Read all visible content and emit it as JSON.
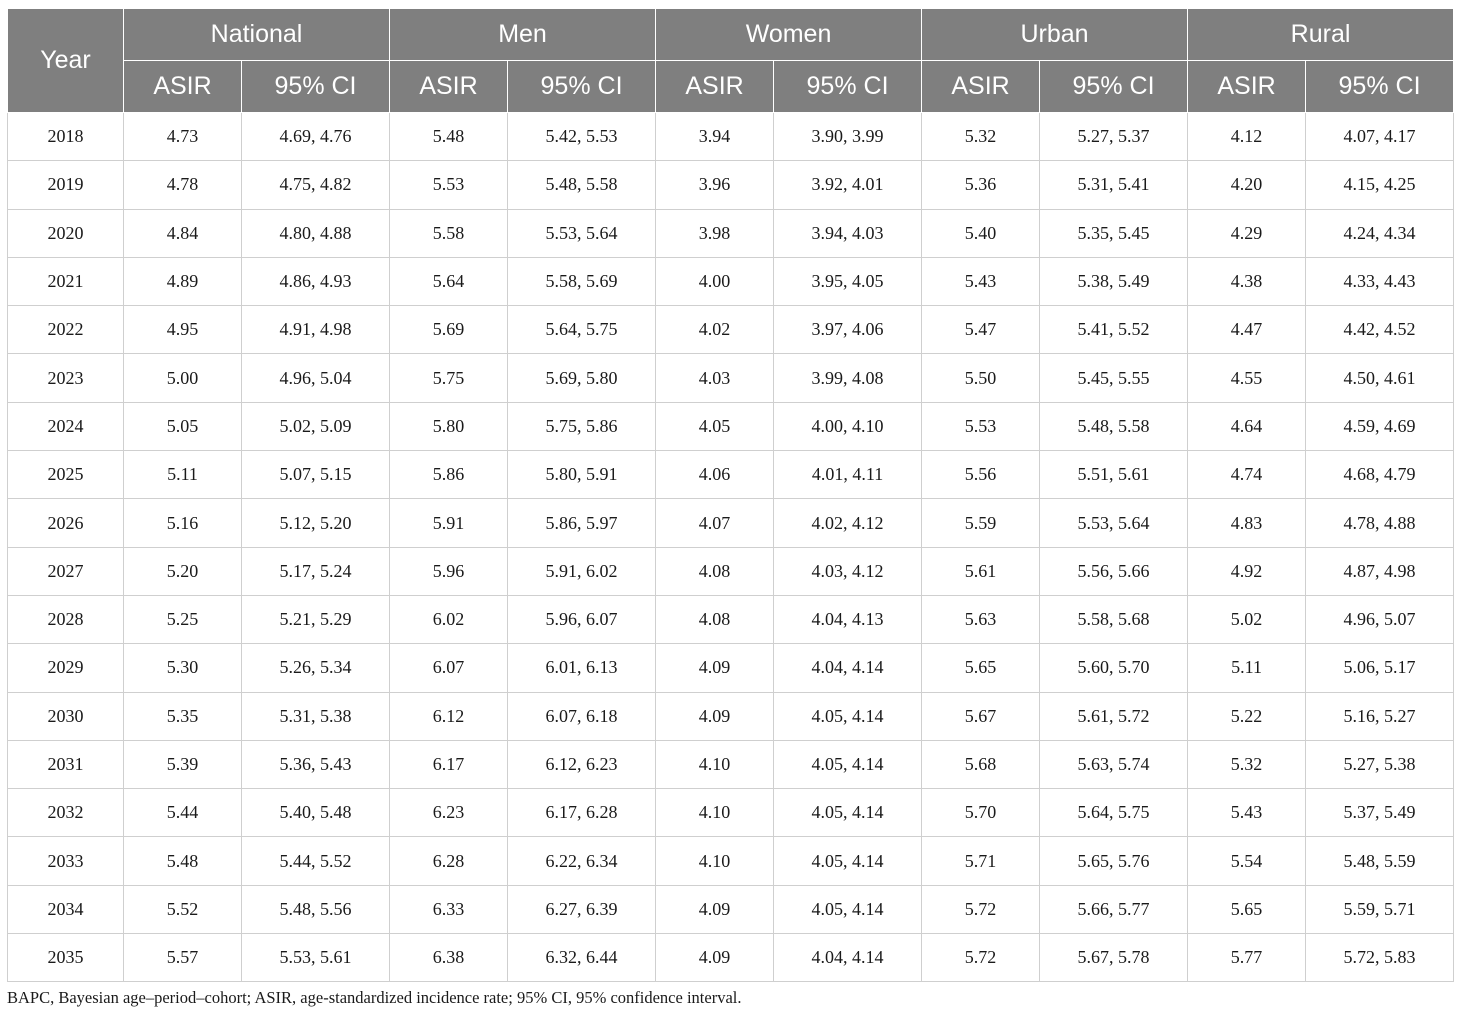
{
  "table": {
    "year_header": "Year",
    "groups": [
      "National",
      "Men",
      "Women",
      "Urban",
      "Rural"
    ],
    "sub_headers": [
      "ASIR",
      "95% CI"
    ],
    "rows": [
      {
        "year": "2018",
        "cells": [
          "4.73",
          "4.69, 4.76",
          "5.48",
          "5.42, 5.53",
          "3.94",
          "3.90, 3.99",
          "5.32",
          "5.27, 5.37",
          "4.12",
          "4.07, 4.17"
        ]
      },
      {
        "year": "2019",
        "cells": [
          "4.78",
          "4.75, 4.82",
          "5.53",
          "5.48, 5.58",
          "3.96",
          "3.92, 4.01",
          "5.36",
          "5.31, 5.41",
          "4.20",
          "4.15, 4.25"
        ]
      },
      {
        "year": "2020",
        "cells": [
          "4.84",
          "4.80, 4.88",
          "5.58",
          "5.53, 5.64",
          "3.98",
          "3.94, 4.03",
          "5.40",
          "5.35, 5.45",
          "4.29",
          "4.24, 4.34"
        ]
      },
      {
        "year": "2021",
        "cells": [
          "4.89",
          "4.86, 4.93",
          "5.64",
          "5.58, 5.69",
          "4.00",
          "3.95, 4.05",
          "5.43",
          "5.38, 5.49",
          "4.38",
          "4.33, 4.43"
        ]
      },
      {
        "year": "2022",
        "cells": [
          "4.95",
          "4.91, 4.98",
          "5.69",
          "5.64, 5.75",
          "4.02",
          "3.97, 4.06",
          "5.47",
          "5.41, 5.52",
          "4.47",
          "4.42, 4.52"
        ]
      },
      {
        "year": "2023",
        "cells": [
          "5.00",
          "4.96, 5.04",
          "5.75",
          "5.69, 5.80",
          "4.03",
          "3.99, 4.08",
          "5.50",
          "5.45, 5.55",
          "4.55",
          "4.50, 4.61"
        ]
      },
      {
        "year": "2024",
        "cells": [
          "5.05",
          "5.02, 5.09",
          "5.80",
          "5.75, 5.86",
          "4.05",
          "4.00, 4.10",
          "5.53",
          "5.48, 5.58",
          "4.64",
          "4.59, 4.69"
        ]
      },
      {
        "year": "2025",
        "cells": [
          "5.11",
          "5.07, 5.15",
          "5.86",
          "5.80, 5.91",
          "4.06",
          "4.01, 4.11",
          "5.56",
          "5.51, 5.61",
          "4.74",
          "4.68, 4.79"
        ]
      },
      {
        "year": "2026",
        "cells": [
          "5.16",
          "5.12, 5.20",
          "5.91",
          "5.86, 5.97",
          "4.07",
          "4.02, 4.12",
          "5.59",
          "5.53, 5.64",
          "4.83",
          "4.78, 4.88"
        ]
      },
      {
        "year": "2027",
        "cells": [
          "5.20",
          "5.17, 5.24",
          "5.96",
          "5.91, 6.02",
          "4.08",
          "4.03, 4.12",
          "5.61",
          "5.56, 5.66",
          "4.92",
          "4.87, 4.98"
        ]
      },
      {
        "year": "2028",
        "cells": [
          "5.25",
          "5.21, 5.29",
          "6.02",
          "5.96, 6.07",
          "4.08",
          "4.04, 4.13",
          "5.63",
          "5.58, 5.68",
          "5.02",
          "4.96, 5.07"
        ]
      },
      {
        "year": "2029",
        "cells": [
          "5.30",
          "5.26, 5.34",
          "6.07",
          "6.01, 6.13",
          "4.09",
          "4.04, 4.14",
          "5.65",
          "5.60, 5.70",
          "5.11",
          "5.06, 5.17"
        ]
      },
      {
        "year": "2030",
        "cells": [
          "5.35",
          "5.31, 5.38",
          "6.12",
          "6.07, 6.18",
          "4.09",
          "4.05, 4.14",
          "5.67",
          "5.61, 5.72",
          "5.22",
          "5.16, 5.27"
        ]
      },
      {
        "year": "2031",
        "cells": [
          "5.39",
          "5.36, 5.43",
          "6.17",
          "6.12, 6.23",
          "4.10",
          "4.05, 4.14",
          "5.68",
          "5.63, 5.74",
          "5.32",
          "5.27, 5.38"
        ]
      },
      {
        "year": "2032",
        "cells": [
          "5.44",
          "5.40, 5.48",
          "6.23",
          "6.17, 6.28",
          "4.10",
          "4.05, 4.14",
          "5.70",
          "5.64, 5.75",
          "5.43",
          "5.37, 5.49"
        ]
      },
      {
        "year": "2033",
        "cells": [
          "5.48",
          "5.44, 5.52",
          "6.28",
          "6.22, 6.34",
          "4.10",
          "4.05, 4.14",
          "5.71",
          "5.65, 5.76",
          "5.54",
          "5.48, 5.59"
        ]
      },
      {
        "year": "2034",
        "cells": [
          "5.52",
          "5.48, 5.56",
          "6.33",
          "6.27, 6.39",
          "4.09",
          "4.05, 4.14",
          "5.72",
          "5.66, 5.77",
          "5.65",
          "5.59, 5.71"
        ]
      },
      {
        "year": "2035",
        "cells": [
          "5.57",
          "5.53, 5.61",
          "6.38",
          "6.32, 6.44",
          "4.09",
          "4.04, 4.14",
          "5.72",
          "5.67, 5.78",
          "5.77",
          "5.72, 5.83"
        ]
      }
    ]
  },
  "footnote": "BAPC, Bayesian age–period–cohort; ASIR, age-standardized incidence rate; 95% CI, 95% confidence interval.",
  "colors": {
    "header_bg": "#7f7f7f",
    "header_text": "#ffffff",
    "grid": "#cfcfcf"
  }
}
